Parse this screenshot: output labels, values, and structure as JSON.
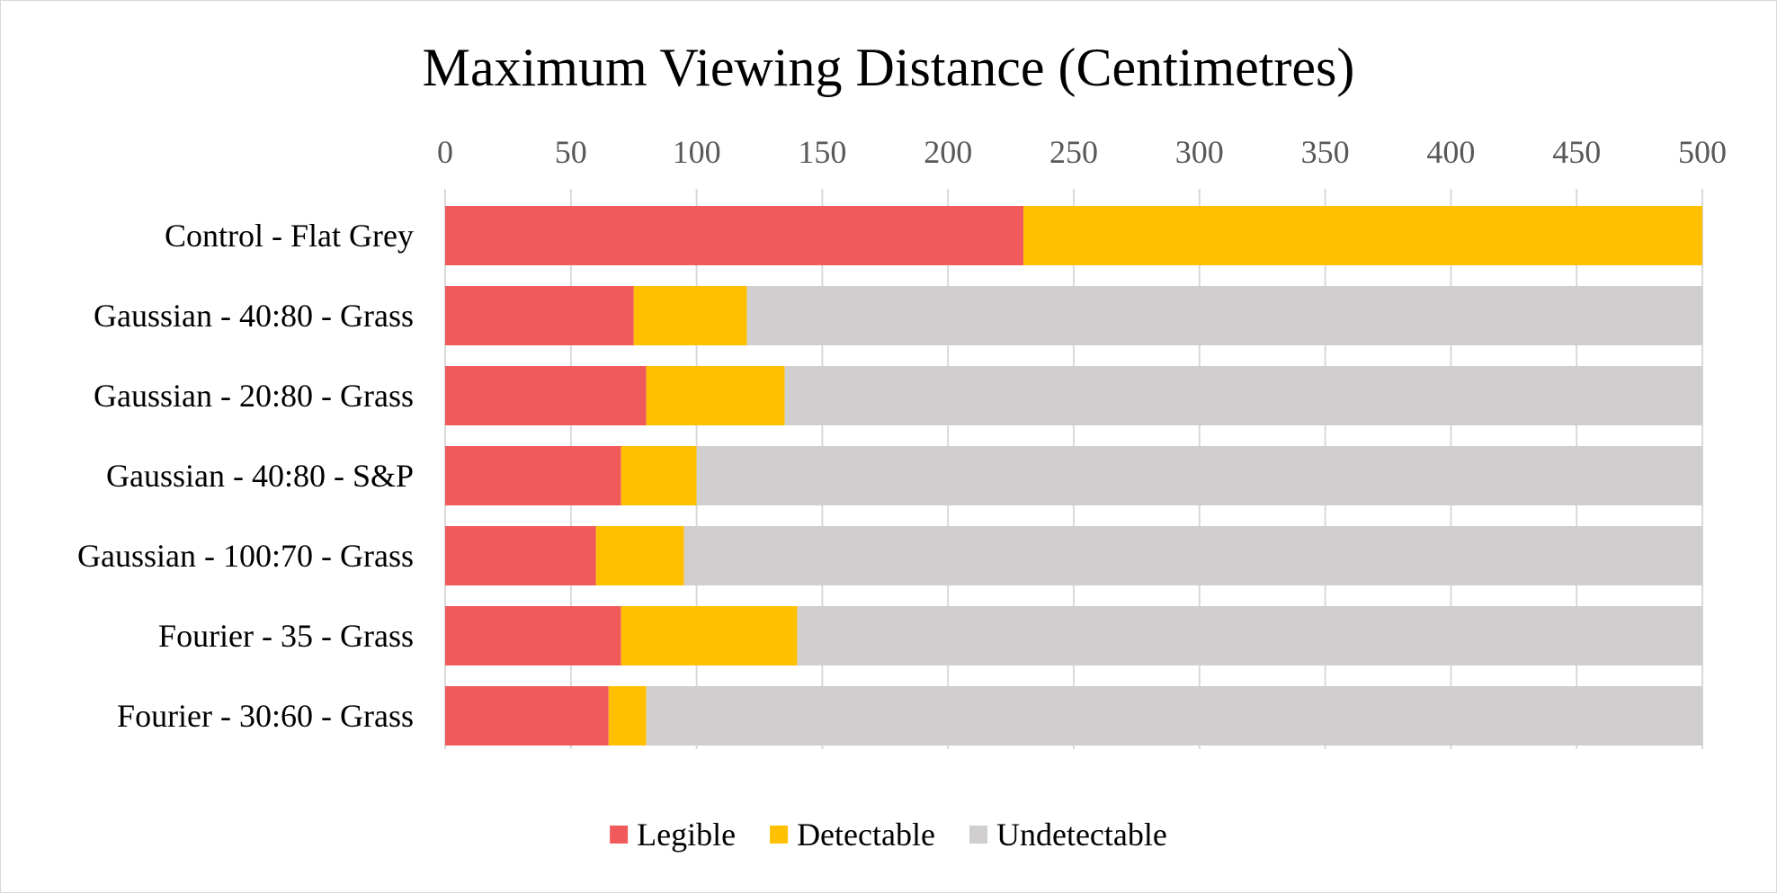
{
  "chart_data": {
    "type": "bar",
    "orientation": "horizontal",
    "stacked": true,
    "title": "Maximum Viewing Distance (Centimetres)",
    "xlabel": "",
    "ylabel": "",
    "xlim": [
      0,
      500
    ],
    "x_ticks": [
      "0",
      "50",
      "100",
      "150",
      "200",
      "250",
      "300",
      "350",
      "400",
      "450",
      "500"
    ],
    "x_axis_position": "top",
    "grid": true,
    "legend_position": "bottom",
    "categories": [
      "Control - Flat Grey",
      "Gaussian - 40:80 - Grass",
      "Gaussian - 20:80 - Grass",
      "Gaussian - 40:80 - S&P",
      "Gaussian - 100:70 - Grass",
      "Fourier - 35 - Grass",
      "Fourier - 30:60 - Grass"
    ],
    "series": [
      {
        "name": "Legible",
        "color": "#f05a5b",
        "values": [
          230,
          75,
          80,
          70,
          60,
          70,
          65
        ]
      },
      {
        "name": "Detectable",
        "color": "#ffc000",
        "values": [
          270,
          45,
          55,
          30,
          35,
          70,
          15
        ]
      },
      {
        "name": "Undetectable",
        "color": "#d0cece",
        "values": [
          0,
          380,
          365,
          400,
          405,
          360,
          420
        ]
      }
    ]
  }
}
